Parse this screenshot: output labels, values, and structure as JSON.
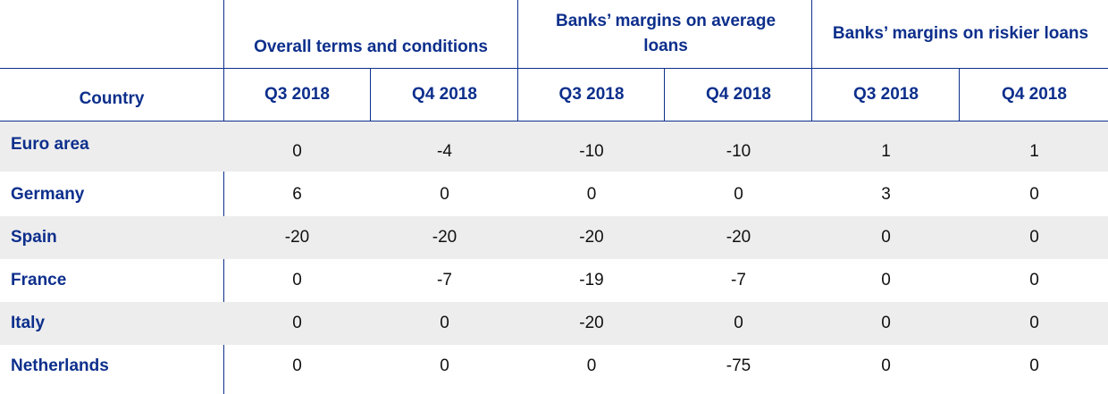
{
  "chart_data": {
    "type": "table",
    "column_groups": [
      "Overall terms and conditions",
      "Banks’ margins on average loans",
      "Banks’ margins on riskier loans"
    ],
    "country_header": "Country",
    "quarters": [
      "Q3 2018",
      "Q4 2018",
      "Q3 2018",
      "Q4 2018",
      "Q3 2018",
      "Q4 2018"
    ],
    "rows": [
      {
        "country": "Euro area",
        "values": [
          "0",
          "-4",
          "-10",
          "-10",
          "1",
          "1"
        ]
      },
      {
        "country": "Germany",
        "values": [
          "6",
          "0",
          "0",
          "0",
          "3",
          "0"
        ]
      },
      {
        "country": "Spain",
        "values": [
          "-20",
          "-20",
          "-20",
          "-20",
          "0",
          "0"
        ]
      },
      {
        "country": "France",
        "values": [
          "0",
          "-7",
          "-19",
          "-7",
          "0",
          "0"
        ]
      },
      {
        "country": "Italy",
        "values": [
          "0",
          "0",
          "-20",
          "0",
          "0",
          "0"
        ]
      },
      {
        "country": "Netherlands",
        "values": [
          "0",
          "0",
          "0",
          "-75",
          "0",
          "0"
        ]
      }
    ]
  },
  "colors": {
    "header_text": "#0d2f8c",
    "shade": "#ededed",
    "rule": "#0d2f8c"
  }
}
